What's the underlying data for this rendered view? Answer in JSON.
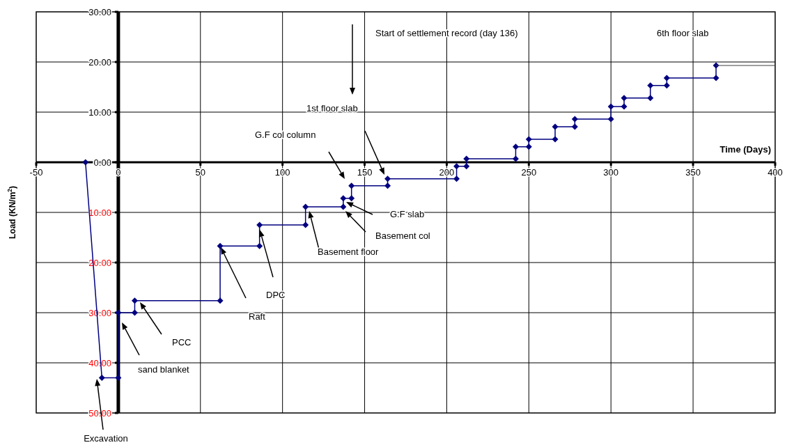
{
  "chart_data": {
    "type": "line",
    "xlabel": "Time (Days)",
    "ylabel": "Load (KN/m$^{2}$)",
    "xlim": [
      -50,
      400
    ],
    "ylim": [
      -50,
      30
    ],
    "xticks": [
      -50,
      0,
      50,
      100,
      150,
      200,
      250,
      300,
      350,
      400
    ],
    "yticks": [
      {
        "value": 30,
        "label": "30.00"
      },
      {
        "value": 20,
        "label": "20.00"
      },
      {
        "value": 10,
        "label": "10.00"
      },
      {
        "value": 0,
        "label": "0.00"
      },
      {
        "value": -10,
        "label": "10.00"
      },
      {
        "value": -20,
        "label": "20.00"
      },
      {
        "value": -30,
        "label": "30.00"
      },
      {
        "value": -40,
        "label": "40.00"
      },
      {
        "value": -50,
        "label": "50.00"
      }
    ],
    "grid": true,
    "series": [
      {
        "color": "#000080",
        "marker": "diamond",
        "x": [
          -20,
          -10,
          0,
          0,
          10,
          10,
          62,
          62,
          86,
          86,
          114,
          114,
          137,
          137,
          142,
          142,
          164,
          164,
          206,
          206,
          212,
          212,
          242,
          242,
          250,
          250,
          266,
          266,
          278,
          278,
          300,
          300,
          308,
          308,
          324,
          324,
          334,
          334,
          364,
          364
        ],
        "values": [
          0,
          -43,
          -43,
          -30,
          -30,
          -27.6,
          -27.6,
          -16.7,
          -16.7,
          -12.5,
          -12.5,
          -8.9,
          -8.9,
          -7.2,
          -7.2,
          -4.7,
          -4.7,
          -3.3,
          -3.3,
          -0.8,
          -0.8,
          0.7,
          0.7,
          3.1,
          3.1,
          4.6,
          4.6,
          7.1,
          7.1,
          8.6,
          8.6,
          11.1,
          11.1,
          12.8,
          12.8,
          15.3,
          15.3,
          16.8,
          16.8,
          19.3
        ]
      },
      {
        "color": "#404040",
        "marker": "none",
        "x": [
          364,
          400
        ],
        "values": [
          19.3,
          19.3
        ]
      }
    ],
    "annotations": [
      "Excavation",
      "sand blanket",
      "PCC",
      "Raft",
      "DPC",
      "Basement floor",
      "Basement col",
      "G.F slab",
      "G.F col column",
      "1st floor slab",
      "Start of settlement record (day 136)",
      "6th floor slab"
    ]
  }
}
